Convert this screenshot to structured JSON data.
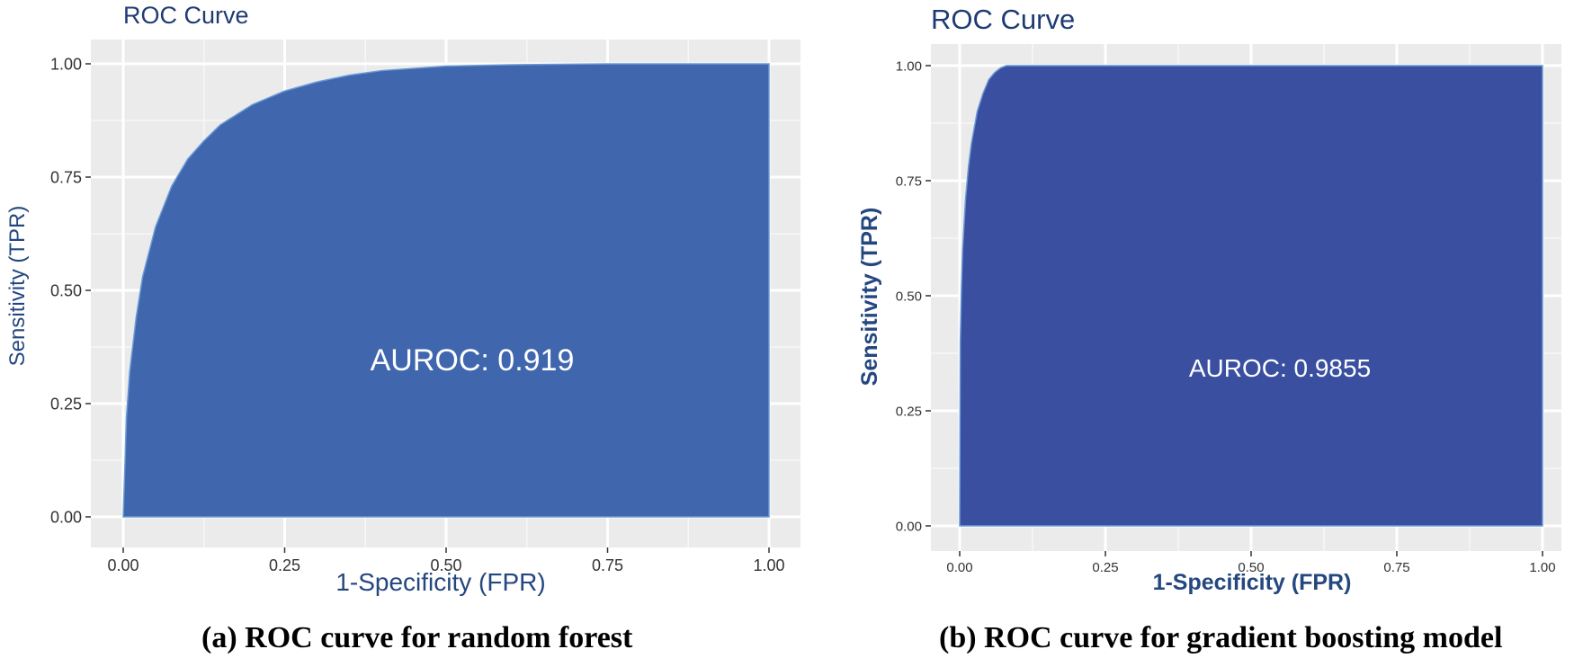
{
  "captions": {
    "a": "(a) ROC curve for random forest",
    "b": "(b) ROC curve for gradient boosting model"
  },
  "chart_data": [
    {
      "type": "area",
      "title": "ROC Curve",
      "xlabel": "1-Specificity (FPR)",
      "ylabel": "Sensitivity (TPR)",
      "annotation": "AUROC: 0.919",
      "xlim": [
        0,
        1
      ],
      "ylim": [
        0,
        1
      ],
      "xticks": [
        "0.00",
        "0.25",
        "0.50",
        "0.75",
        "1.00"
      ],
      "yticks": [
        "0.00",
        "0.25",
        "0.50",
        "0.75",
        "1.00"
      ],
      "grid": true,
      "fill_color": "#4067ad",
      "x": [
        0,
        0.005,
        0.01,
        0.02,
        0.03,
        0.05,
        0.075,
        0.1,
        0.125,
        0.15,
        0.2,
        0.25,
        0.3,
        0.35,
        0.4,
        0.5,
        0.6,
        0.75,
        1.0
      ],
      "y": [
        0,
        0.22,
        0.32,
        0.44,
        0.53,
        0.64,
        0.73,
        0.79,
        0.83,
        0.865,
        0.91,
        0.94,
        0.96,
        0.975,
        0.985,
        0.995,
        0.998,
        1.0,
        1.0
      ]
    },
    {
      "type": "area",
      "title": "ROC Curve",
      "xlabel": "1-Specificity (FPR)",
      "ylabel": "Sensitivity (TPR)",
      "annotation": "AUROC: 0.9855",
      "xlim": [
        0,
        1
      ],
      "ylim": [
        0,
        1
      ],
      "xticks": [
        "0.00",
        "0.25",
        "0.50",
        "0.75",
        "1.00"
      ],
      "yticks": [
        "0.00",
        "0.25",
        "0.50",
        "0.75",
        "1.00"
      ],
      "grid": true,
      "fill_color": "#3a4f9f",
      "x": [
        0,
        0.001,
        0.003,
        0.005,
        0.01,
        0.015,
        0.02,
        0.03,
        0.04,
        0.05,
        0.06,
        0.07,
        0.08,
        0.09,
        0.1,
        1.0
      ],
      "y": [
        0,
        0.4,
        0.52,
        0.6,
        0.71,
        0.78,
        0.83,
        0.9,
        0.94,
        0.97,
        0.985,
        0.995,
        1.0,
        1.0,
        1.0,
        1.0
      ]
    }
  ]
}
